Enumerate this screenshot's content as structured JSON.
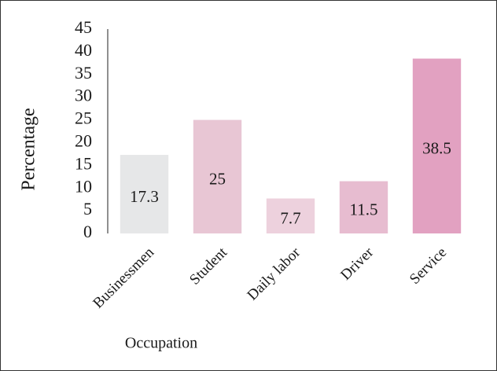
{
  "chart_data": {
    "type": "bar",
    "x_label": "Occupation",
    "y_label": "Percentage",
    "categories": [
      "Businessmen",
      "Student",
      "Daily labor",
      "Driver",
      "Service"
    ],
    "values": [
      17.3,
      25,
      7.7,
      11.5,
      38.5
    ],
    "colors": [
      "#e6e7e8",
      "#e8c6d4",
      "#edd1dd",
      "#e7bcd0",
      "#e2a1c1"
    ],
    "ylim": [
      0,
      45
    ],
    "yticks": [
      0,
      5,
      10,
      15,
      20,
      25,
      30,
      35,
      40,
      45
    ],
    "grid": false,
    "value_labels_shown": true
  }
}
